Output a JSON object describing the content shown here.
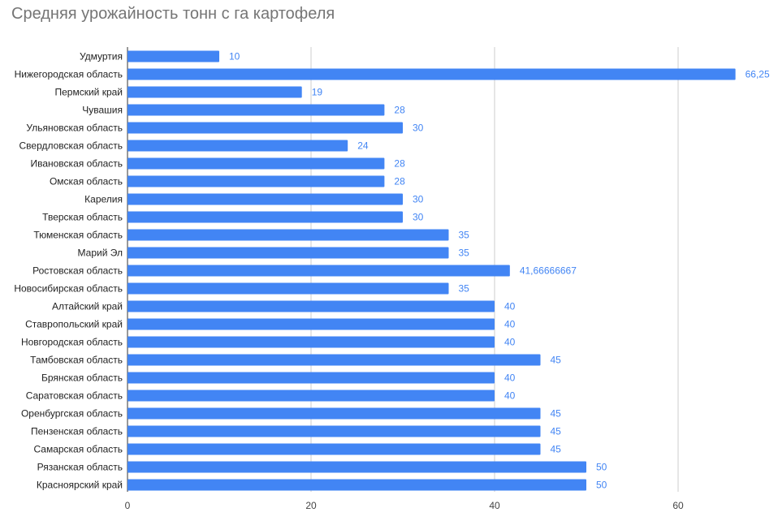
{
  "chart_data": {
    "type": "bar",
    "orientation": "horizontal",
    "title": "Средняя урожайность тонн с га картофеля",
    "xlabel": "",
    "ylabel": "",
    "categories": [
      "Удмуртия",
      "Нижегородская область",
      "Пермский край",
      "Чувашия",
      "Ульяновская область",
      "Свердловская область",
      "Ивановская область",
      "Омская область",
      "Карелия",
      "Тверская область",
      "Тюменская область",
      "Марий Эл",
      "Ростовская область",
      "Новосибирская область",
      "Алтайский край",
      "Ставропольский край",
      "Новгородская область",
      "Тамбовская область",
      "Брянская область",
      "Саратовская область",
      "Оренбургская область",
      "Пензенская область",
      "Самарская область",
      "Рязанская область",
      "Красноярский край"
    ],
    "values": [
      10,
      66.25,
      19,
      28,
      30,
      24,
      28,
      28,
      30,
      30,
      35,
      35,
      41.66666667,
      35,
      40,
      40,
      40,
      45,
      40,
      40,
      45,
      45,
      45,
      50,
      50
    ],
    "value_labels": [
      "10",
      "66,25",
      "19",
      "28",
      "30",
      "24",
      "28",
      "28",
      "30",
      "30",
      "35",
      "35",
      "41,66666667",
      "35",
      "40",
      "40",
      "40",
      "45",
      "40",
      "40",
      "45",
      "45",
      "45",
      "50",
      "50"
    ],
    "xlim": [
      0,
      70
    ],
    "xticks": [
      0,
      20,
      40,
      60
    ],
    "xtick_labels": [
      "0",
      "20",
      "40",
      "60"
    ],
    "grid": true,
    "legend": "none",
    "bar_color": "#4285f4",
    "value_label_color": "#4285f4",
    "grid_color": "#cccccc"
  }
}
